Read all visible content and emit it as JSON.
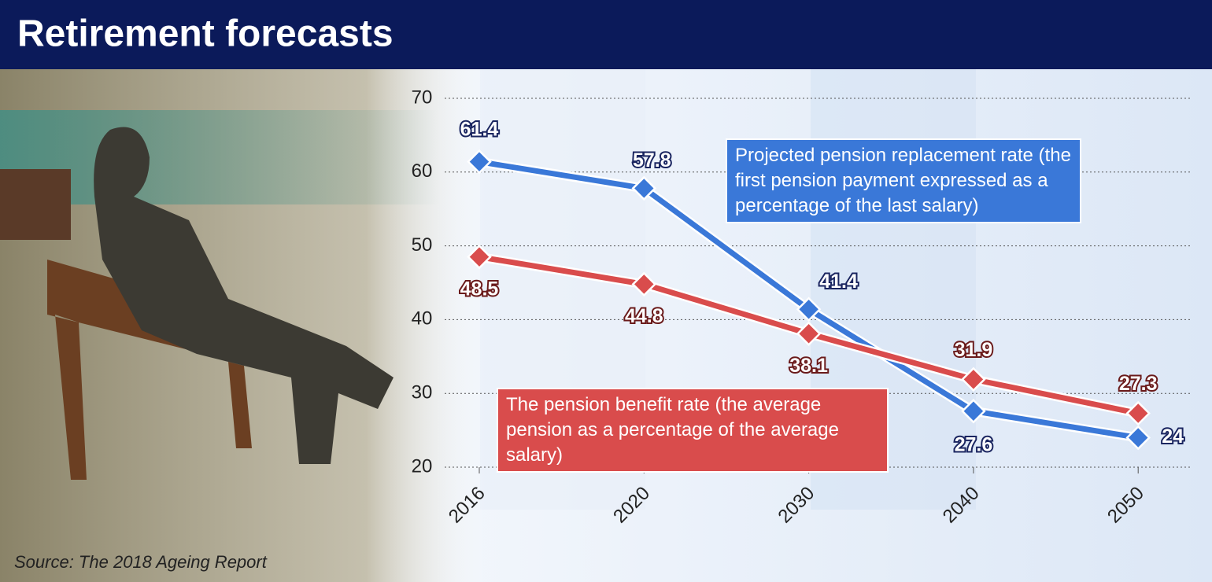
{
  "chart_data": {
    "type": "line",
    "title": "Retirement forecasts",
    "source": "Source: The 2018 Ageing Report",
    "categories": [
      "2016",
      "2020",
      "2030",
      "2040",
      "2050"
    ],
    "series": [
      {
        "name": "Projected pension replacement rate (the first pension payment expressed as a percentage of the last salary)",
        "color": "#3a78d8",
        "values": [
          61.4,
          57.8,
          41.4,
          27.6,
          24
        ]
      },
      {
        "name": "The pension benefit rate (the average pension as a percentage of the average salary)",
        "color": "#d94c4c",
        "values": [
          48.5,
          44.8,
          38.1,
          31.9,
          27.3
        ]
      }
    ],
    "ylim": [
      20,
      70
    ],
    "yticks": [
      20,
      30,
      40,
      50,
      60,
      70
    ],
    "grid": true
  }
}
